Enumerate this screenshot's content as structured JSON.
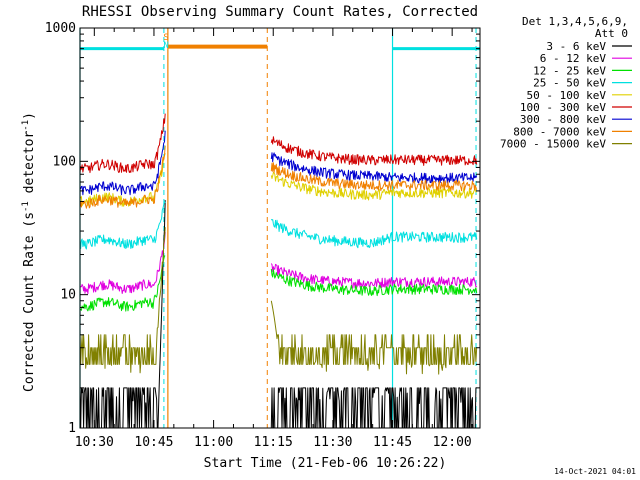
{
  "chart_data": {
    "type": "line",
    "title": "RHESSI Observing Summary Count Rates, Corrected",
    "xlabel": "Start Time (21-Feb-06 10:26:22)",
    "ylabel": "Corrected Count Rate (s⁻¹ detector⁻¹)",
    "ylabel_parts": {
      "base": "Corrected Count Rate (s",
      "exp1": "-1",
      "mid": " detector",
      "exp2": "-1",
      "end": ")"
    },
    "footer": "14-Oct-2021 04:01",
    "y_scale": "log",
    "ylim": [
      1,
      1000
    ],
    "xlim_minutes": [
      626.4,
      727.0
    ],
    "x_ticks": [
      {
        "t": 630,
        "label": "10:30"
      },
      {
        "t": 645,
        "label": "10:45"
      },
      {
        "t": 660,
        "label": "11:00"
      },
      {
        "t": 675,
        "label": "11:15"
      },
      {
        "t": 690,
        "label": "11:30"
      },
      {
        "t": 705,
        "label": "11:45"
      },
      {
        "t": 720,
        "label": "12:00"
      }
    ],
    "y_ticks": [
      {
        "v": 1,
        "label": "1"
      },
      {
        "v": 10,
        "label": "10"
      },
      {
        "v": 100,
        "label": "100"
      },
      {
        "v": 1000,
        "label": "1000"
      }
    ],
    "legend": {
      "header": [
        "Det 1,3,4,5,6,9,",
        "Att 0"
      ],
      "placement": "right",
      "entries": [
        {
          "label": "3 - 6 keV",
          "color": "#000000"
        },
        {
          "label": "6 - 12 keV",
          "color": "#e000e0"
        },
        {
          "label": "12 - 25 keV",
          "color": "#00e000"
        },
        {
          "label": "25 - 50 keV",
          "color": "#00e0e0"
        },
        {
          "label": "50 - 100 keV",
          "color": "#e0d000"
        },
        {
          "label": "100 - 300 keV",
          "color": "#d00000"
        },
        {
          "label": "300 - 800 keV",
          "color": "#0000d0"
        },
        {
          "label": "800 - 7000 keV",
          "color": "#f08000"
        },
        {
          "label": "7000 - 15000 keV",
          "color": "#808000"
        }
      ]
    },
    "night_bars": [
      [
        626.4,
        647.5
      ],
      [
        705.0,
        727.0
      ]
    ],
    "saa_bar": [
      648.5,
      673.5
    ],
    "bar_level": 700,
    "dashed_vlines": [
      {
        "t": 647.5,
        "color": "#00e0e0"
      },
      {
        "t": 673.5,
        "color": "#f08000"
      },
      {
        "t": 726.0,
        "color": "#00e0e0"
      }
    ],
    "solid_vlines": [
      {
        "t": 626.4,
        "color": "#00e0e0"
      },
      {
        "t": 648.5,
        "color": "#f08000"
      },
      {
        "t": 705.0,
        "color": "#00e0e0"
      }
    ],
    "markers": {
      "t": 647.8,
      "top": "S",
      "bottom": "N",
      "color": "#f08000"
    },
    "segments": [
      [
        626.4,
        647.9
      ],
      [
        674.5,
        726.3
      ]
    ],
    "series": [
      {
        "name": "3 - 6 keV",
        "color": "#000000",
        "profile": "black"
      },
      {
        "name": "6 - 12 keV",
        "color": "#e000e0",
        "pre": 11.5,
        "peak": 28,
        "post_start": 16,
        "post_min": 12,
        "post_end": 12.5
      },
      {
        "name": "12 - 25 keV",
        "color": "#00e000",
        "pre": 8.5,
        "peak": 22,
        "post_start": 14.5,
        "post_min": 10.5,
        "post_end": 11.0
      },
      {
        "name": "25 - 50 keV",
        "color": "#00e0e0",
        "pre": 25,
        "peak": 52,
        "post_start": 35,
        "post_min": 24,
        "post_end": 27
      },
      {
        "name": "50 - 100 keV",
        "color": "#e0d000",
        "pre": 52,
        "peak": 120,
        "post_start": 78,
        "post_min": 55,
        "post_end": 58
      },
      {
        "name": "100 - 300 keV",
        "color": "#d00000",
        "pre": 92,
        "peak": 230,
        "post_start": 145,
        "post_min": 100,
        "post_end": 102
      },
      {
        "name": "300 - 800 keV",
        "color": "#0000d0",
        "pre": 63,
        "peak": 165,
        "post_start": 110,
        "post_min": 76,
        "post_end": 75
      },
      {
        "name": "800 - 7000 keV",
        "color": "#f08000",
        "pre": 50,
        "peak": 130,
        "post_start": 92,
        "post_min": 65,
        "post_end": 66
      },
      {
        "name": "7000 - 15000 keV",
        "color": "#808000",
        "profile": "olive"
      }
    ]
  }
}
